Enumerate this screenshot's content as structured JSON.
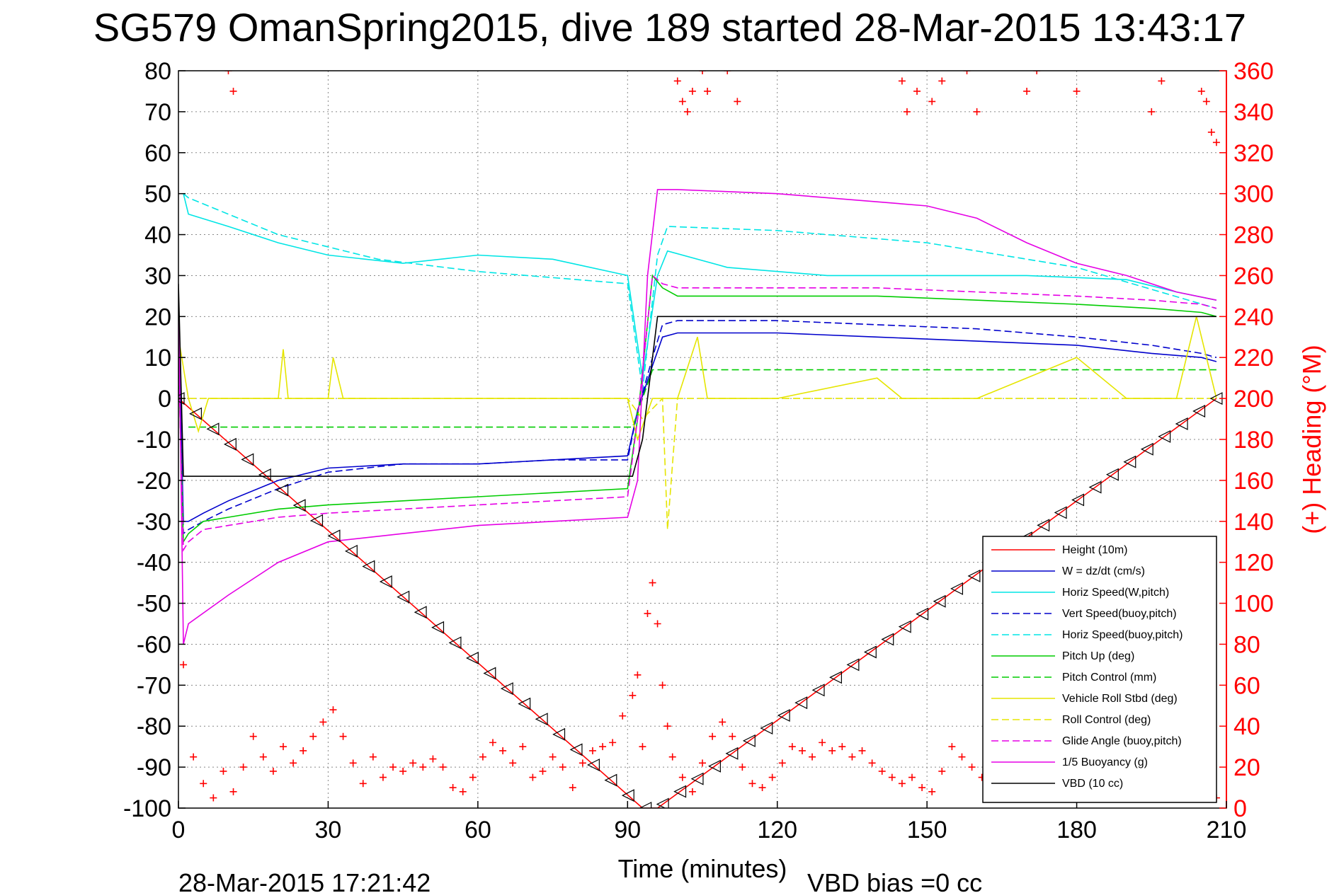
{
  "chart_data": {
    "type": "line",
    "title": "SG579 OmanSpring2015, dive 189 started 28-Mar-2015 13:43:17",
    "xlabel": "Time (minutes)",
    "ylabel": "",
    "y2label": "(+) Heading (°M)",
    "xlim": [
      0,
      210
    ],
    "ylim": [
      -100,
      80
    ],
    "y2lim": [
      0,
      360
    ],
    "xticks": [
      "0",
      "30",
      "60",
      "90",
      "120",
      "150",
      "180",
      "210"
    ],
    "yticks": [
      "-100",
      "-90",
      "-80",
      "-70",
      "-60",
      "-50",
      "-40",
      "-30",
      "-20",
      "-10",
      "0",
      "10",
      "20",
      "30",
      "40",
      "50",
      "60",
      "70",
      "80"
    ],
    "y2ticks": [
      "0",
      "20",
      "40",
      "60",
      "80",
      "100",
      "120",
      "140",
      "160",
      "180",
      "200",
      "220",
      "240",
      "260",
      "280",
      "300",
      "320",
      "340",
      "360"
    ],
    "grid": true,
    "legend_position": "bottom-right",
    "footer_left": "28-Mar-2015 17:21:42",
    "footer_right": "VBD bias =0 cc",
    "series": [
      {
        "name": "Height (10m)",
        "color": "#ff0000",
        "style": "solid",
        "x": [
          0,
          93,
          96,
          208
        ],
        "y": [
          0,
          -100,
          -100,
          0
        ]
      },
      {
        "name": "W = dz/dt (cm/s)",
        "color": "#0000cc",
        "style": "solid",
        "x": [
          0,
          1,
          2,
          5,
          10,
          20,
          30,
          45,
          60,
          75,
          90,
          92,
          95,
          97,
          100,
          120,
          140,
          160,
          180,
          195,
          205,
          208
        ],
        "y": [
          20,
          -30,
          -30,
          -28,
          -25,
          -20,
          -17,
          -16,
          -16,
          -15,
          -14,
          -3,
          8,
          15,
          16,
          16,
          15,
          14,
          13,
          11,
          10,
          9
        ]
      },
      {
        "name": "Horiz Speed(W,pitch)",
        "color": "#00e5e5",
        "style": "solid",
        "x": [
          1,
          2,
          10,
          20,
          30,
          45,
          60,
          75,
          90,
          93,
          96,
          98,
          110,
          130,
          150,
          170,
          190,
          200,
          208
        ],
        "y": [
          50,
          45,
          42,
          38,
          35,
          33,
          35,
          34,
          30,
          5,
          30,
          36,
          32,
          30,
          30,
          30,
          29,
          26,
          24
        ]
      },
      {
        "name": "Vert Speed(buoy,pitch)",
        "color": "#0000cc",
        "style": "dashed",
        "x": [
          0,
          1,
          2,
          5,
          10,
          20,
          30,
          45,
          60,
          75,
          90,
          92,
          95,
          97,
          100,
          120,
          140,
          160,
          180,
          195,
          205,
          208
        ],
        "y": [
          20,
          -33,
          -32,
          -30,
          -27,
          -22,
          -18,
          -16,
          -16,
          -15,
          -15,
          -3,
          10,
          18,
          19,
          19,
          18,
          17,
          15,
          13,
          11,
          10
        ]
      },
      {
        "name": "Horiz Speed(buoy,pitch)",
        "color": "#00e5e5",
        "style": "dashed",
        "x": [
          1,
          2,
          20,
          40,
          60,
          90,
          93,
          96,
          98,
          120,
          150,
          180,
          208
        ],
        "y": [
          50,
          49,
          40,
          34,
          31,
          28,
          2,
          35,
          42,
          41,
          38,
          32,
          22
        ]
      },
      {
        "name": "Pitch Up (deg)",
        "color": "#00cc00",
        "style": "solid",
        "x": [
          0,
          1,
          2,
          5,
          10,
          20,
          30,
          45,
          60,
          75,
          90,
          92,
          95,
          97,
          100,
          120,
          140,
          160,
          180,
          195,
          205,
          208
        ],
        "y": [
          10,
          -35,
          -33,
          -30,
          -29,
          -27,
          -26,
          -25,
          -24,
          -23,
          -22,
          -5,
          30,
          27,
          25,
          25,
          25,
          24,
          23,
          22,
          21,
          20
        ]
      },
      {
        "name": "Pitch Control (mm)",
        "color": "#00cc00",
        "style": "dashed",
        "x": [
          2,
          91,
          95,
          208
        ],
        "y": [
          -7,
          -7,
          7,
          7
        ]
      },
      {
        "name": "Vehicle Roll Stbd (deg)",
        "color": "#e5e500",
        "style": "solid",
        "x": [
          0,
          2,
          4,
          6,
          8,
          20,
          21,
          22,
          30,
          31,
          33,
          60,
          90,
          92,
          95,
          100,
          104,
          106,
          120,
          140,
          145,
          150,
          160,
          180,
          190,
          200,
          204,
          208
        ],
        "y": [
          15,
          0,
          -8,
          0,
          0,
          0,
          12,
          0,
          0,
          10,
          0,
          0,
          0,
          -10,
          0,
          0,
          15,
          0,
          0,
          5,
          0,
          0,
          0,
          10,
          0,
          0,
          20,
          0
        ]
      },
      {
        "name": "Roll Control (deg)",
        "color": "#e5e500",
        "style": "dashed",
        "x": [
          0,
          2,
          20,
          30,
          60,
          90,
          93,
          97,
          98,
          100,
          130,
          150,
          170,
          190,
          200,
          208
        ],
        "y": [
          0,
          0,
          0,
          0,
          0,
          0,
          -5,
          0,
          -32,
          0,
          0,
          0,
          0,
          0,
          0,
          0
        ]
      },
      {
        "name": "Glide Angle (buoy,pitch)",
        "color": "#e500e5",
        "style": "dashed",
        "x": [
          0,
          1,
          2,
          5,
          10,
          20,
          30,
          45,
          60,
          75,
          90,
          92,
          95,
          97,
          100,
          120,
          140,
          160,
          180,
          195,
          205,
          208
        ],
        "y": [
          10,
          -37,
          -35,
          -32,
          -31,
          -29,
          -28,
          -27,
          -26,
          -25,
          -24,
          -5,
          30,
          28,
          27,
          27,
          27,
          26,
          25,
          24,
          23,
          22
        ]
      },
      {
        "name": "1/5 Buoyancy (g)",
        "color": "#e500e5",
        "style": "solid",
        "x": [
          0,
          1,
          2,
          10,
          20,
          30,
          45,
          60,
          75,
          90,
          92,
          94,
          96,
          100,
          120,
          140,
          150,
          160,
          170,
          180,
          190,
          200,
          208
        ],
        "y": [
          25,
          -60,
          -55,
          -48,
          -40,
          -35,
          -33,
          -31,
          -30,
          -29,
          -20,
          30,
          51,
          51,
          50,
          48,
          47,
          44,
          38,
          33,
          30,
          26,
          24
        ]
      },
      {
        "name": "VBD (10 cc)",
        "color": "#000000",
        "style": "solid",
        "x": [
          0,
          1,
          91,
          93,
          96,
          208
        ],
        "y": [
          28,
          -19,
          -19,
          -10,
          20,
          20
        ]
      }
    ],
    "heading_points": {
      "name": "(+) Heading (°M)",
      "color": "#ff0000",
      "axis": "right",
      "x": [
        1,
        3,
        5,
        7,
        9,
        11,
        13,
        15,
        17,
        19,
        21,
        23,
        25,
        27,
        29,
        31,
        33,
        35,
        37,
        39,
        41,
        43,
        45,
        47,
        49,
        51,
        53,
        55,
        57,
        59,
        61,
        63,
        65,
        67,
        69,
        71,
        73,
        75,
        77,
        79,
        81,
        83,
        85,
        87,
        89,
        91,
        92,
        93,
        94,
        95,
        96,
        97,
        98,
        99,
        101,
        103,
        105,
        107,
        109,
        111,
        113,
        115,
        117,
        119,
        121,
        123,
        125,
        127,
        129,
        131,
        133,
        135,
        137,
        139,
        141,
        143,
        145,
        147,
        149,
        151,
        153,
        155,
        157,
        159,
        161,
        163,
        165,
        167,
        169,
        171,
        173,
        175,
        177,
        179,
        181,
        183,
        185,
        187,
        189,
        191,
        193,
        195,
        197,
        199,
        201,
        203,
        205,
        207,
        208,
        10,
        11,
        100,
        101,
        102,
        103,
        105,
        106,
        110,
        112,
        145,
        146,
        148,
        151,
        153,
        158,
        160,
        170,
        172,
        180,
        195,
        197,
        205,
        206,
        207,
        208
      ],
      "y": [
        70,
        25,
        12,
        5,
        18,
        8,
        20,
        35,
        25,
        18,
        30,
        22,
        28,
        35,
        42,
        48,
        35,
        22,
        12,
        25,
        15,
        20,
        18,
        22,
        20,
        24,
        20,
        10,
        8,
        15,
        25,
        32,
        28,
        22,
        30,
        15,
        18,
        25,
        20,
        10,
        22,
        28,
        30,
        32,
        45,
        55,
        65,
        30,
        95,
        110,
        90,
        60,
        40,
        25,
        15,
        8,
        22,
        35,
        42,
        35,
        20,
        12,
        10,
        15,
        22,
        30,
        28,
        25,
        32,
        28,
        30,
        25,
        28,
        22,
        18,
        15,
        12,
        15,
        10,
        8,
        18,
        30,
        25,
        20,
        15,
        10,
        12,
        18,
        22,
        20,
        25,
        18,
        12,
        15,
        22,
        25,
        18,
        12,
        10,
        8,
        15,
        20,
        18,
        22,
        25,
        20,
        15,
        8,
        5,
        360,
        350,
        355,
        345,
        340,
        350,
        360,
        350,
        360,
        345,
        355,
        340,
        350,
        345,
        355,
        360,
        340,
        350,
        360,
        350,
        340,
        355,
        350,
        345,
        330,
        325
      ]
    }
  }
}
